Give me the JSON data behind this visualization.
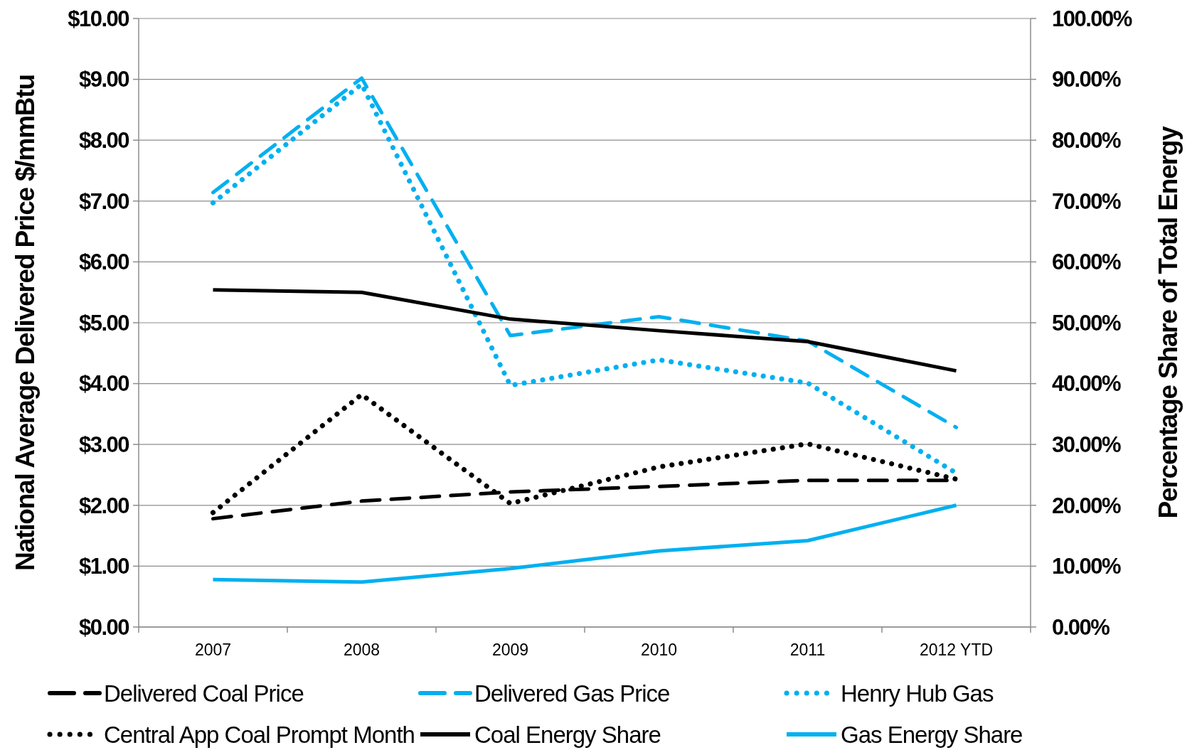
{
  "chart_data": {
    "type": "line",
    "ylabel": "National Average Delivered Price $/mmBtu",
    "y2label": "Percentage Share of Total Energy",
    "categories": [
      "2007",
      "2008",
      "2009",
      "2010",
      "2011",
      "2012 YTD"
    ],
    "ylim": [
      0,
      10
    ],
    "yticks": [
      {
        "value": 0,
        "label": "$0.00"
      },
      {
        "value": 1,
        "label": "$1.00"
      },
      {
        "value": 2,
        "label": "$2.00"
      },
      {
        "value": 3,
        "label": "$3.00"
      },
      {
        "value": 4,
        "label": "$4.00"
      },
      {
        "value": 5,
        "label": "$5.00"
      },
      {
        "value": 6,
        "label": "$6.00"
      },
      {
        "value": 7,
        "label": "$7.00"
      },
      {
        "value": 8,
        "label": "$8.00"
      },
      {
        "value": 9,
        "label": "$9.00"
      },
      {
        "value": 10,
        "label": "$10.00"
      }
    ],
    "y2lim": [
      0,
      100
    ],
    "y2ticks": [
      {
        "value": 0,
        "label": "0.00%"
      },
      {
        "value": 10,
        "label": "10.00%"
      },
      {
        "value": 20,
        "label": "20.00%"
      },
      {
        "value": 30,
        "label": "30.00%"
      },
      {
        "value": 40,
        "label": "40.00%"
      },
      {
        "value": 50,
        "label": "50.00%"
      },
      {
        "value": 60,
        "label": "60.00%"
      },
      {
        "value": 70,
        "label": "70.00%"
      },
      {
        "value": 80,
        "label": "80.00%"
      },
      {
        "value": 90,
        "label": "90.00%"
      },
      {
        "value": 100,
        "label": "100.00%"
      }
    ],
    "grid": "y",
    "legend": "bottom",
    "marker": "none",
    "series": [
      {
        "name": "Delivered Coal Price",
        "color": "#000000",
        "line_style": "dashed",
        "values": [
          1.78,
          2.07,
          2.22,
          2.31,
          2.41,
          2.41
        ]
      },
      {
        "name": "Delivered Gas Price",
        "color": "#00b0f0",
        "line_style": "dashed",
        "values": [
          7.14,
          9.02,
          4.79,
          5.1,
          4.7,
          3.28
        ]
      },
      {
        "name": "Henry Hub Gas",
        "color": "#00b0f0",
        "line_style": "dotted",
        "values": [
          6.97,
          8.92,
          3.97,
          4.39,
          4.01,
          2.53
        ]
      },
      {
        "name": "Central App Coal Prompt Month",
        "color": "#000000",
        "line_style": "dotted",
        "values": [
          1.88,
          3.82,
          2.03,
          2.63,
          3.01,
          2.43
        ]
      },
      {
        "name": "Coal Energy Share",
        "color": "#000000",
        "line_style": "solid",
        "axis": "y2",
        "values": [
          55.4,
          55.0,
          50.6,
          48.7,
          46.9,
          42.1
        ]
      },
      {
        "name": "Gas Energy Share",
        "color": "#00b0f0",
        "line_style": "solid",
        "axis": "y2",
        "values": [
          7.8,
          7.4,
          9.6,
          12.5,
          14.2,
          20.0
        ]
      }
    ]
  }
}
